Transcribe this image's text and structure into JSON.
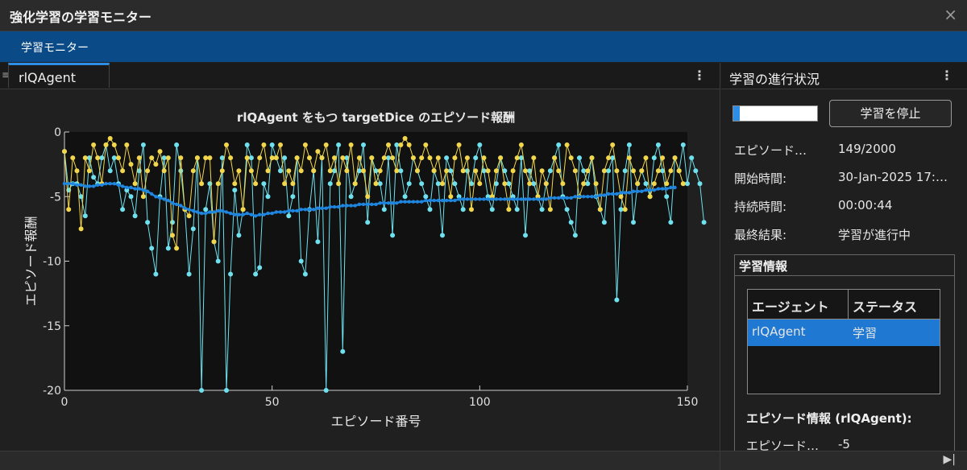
{
  "window": {
    "title": "強化学習の学習モニター",
    "close_icon": "×"
  },
  "ribbon": {
    "tab_label": "学習モニター"
  },
  "doc_tab": {
    "label": "rlQAgent",
    "kebab": "⋮",
    "grip": "≡"
  },
  "chart_data": {
    "type": "line",
    "title": "rlQAgent をもつ targetDice のエピソード報酬",
    "xlabel": "エピソード番号",
    "ylabel": "エピソード報酬",
    "xlim": [
      0,
      150
    ],
    "ylim": [
      -20,
      0
    ],
    "xticks": [
      "0",
      "50",
      "100",
      "150"
    ],
    "yticks": [
      "0",
      "-5",
      "-10",
      "-15",
      "-20"
    ],
    "colors": {
      "episode_reward": "#6fe0ee",
      "episode_q0": "#f2d64b",
      "average_reward": "#1f86e0"
    },
    "series": [
      {
        "key": "episode_reward",
        "values": [
          -1.5,
          -4.5,
          -4,
          -4,
          -5,
          -6.5,
          -2,
          -3.5,
          -4,
          -2,
          -1,
          -3,
          -2,
          -4,
          -6,
          -4.5,
          -5,
          -6.5,
          -3,
          -1,
          -7,
          -9,
          -11,
          -5,
          -2,
          -9,
          -7,
          -1,
          -3,
          -6,
          -11,
          -7.5,
          -2,
          -20,
          -6,
          -4,
          -8.5,
          -10,
          -2,
          -20,
          -11,
          -4.5,
          -8,
          -6,
          -1,
          -2,
          -11,
          -10.5,
          -4,
          -5,
          -1,
          -2,
          -3,
          -2,
          -6.5,
          -5,
          -2,
          -10,
          -11,
          -6,
          -3,
          -8.5,
          -2,
          -20,
          -4,
          -3,
          -1,
          -17,
          -2,
          -5,
          -4,
          -3,
          -1,
          -7,
          -2,
          -3,
          -4,
          -6,
          -2,
          -8,
          -1,
          -3,
          -5,
          -4,
          -2,
          -3,
          -4,
          -5,
          -6,
          -3,
          -4,
          -8,
          -2,
          -3,
          -4,
          -5,
          -6,
          -3,
          -4,
          -2,
          -1,
          -3,
          -5,
          -6,
          -4,
          -2,
          -3,
          -4,
          -5,
          -6,
          -2,
          -8,
          -3,
          -4,
          -5,
          -6,
          -4,
          -3,
          -2,
          -1,
          -5,
          -6,
          -7,
          -8,
          -2,
          -3,
          -4,
          -2,
          -5,
          -6,
          -7,
          -3,
          -2,
          -13,
          -6,
          -3,
          -1,
          -7,
          -4,
          -3,
          -4,
          -5,
          -2,
          -1,
          -3,
          -5,
          -7,
          -2,
          -3,
          -1,
          -4,
          -2,
          -3,
          -4,
          -7
        ],
        "mark_size": 3
      },
      {
        "key": "episode_q0",
        "values": [
          -1.5,
          -6,
          -2,
          -3,
          -7.5,
          -2,
          -3,
          -1,
          -2,
          -4,
          -1,
          -0.5,
          -1,
          -2,
          -3,
          -1,
          -2.5,
          -4,
          -2,
          -5,
          -3,
          -2,
          -2.5,
          -1.5,
          -3,
          -2,
          -8,
          -9,
          -2,
          -6,
          -6.5,
          -3,
          -2,
          -4,
          -2,
          -2,
          -8.5,
          -4,
          -3,
          -1,
          -2,
          -4,
          -3,
          -6,
          -2,
          -3,
          -4,
          -2,
          -1,
          -3,
          -2,
          -2,
          -1,
          -4,
          -3,
          -4,
          -2,
          -3,
          -1,
          -2,
          -3,
          -1.5,
          -2,
          -1,
          -3,
          -2,
          -4,
          -2,
          -3,
          -1,
          -4,
          -2,
          -3,
          -5,
          -2,
          -4,
          -3,
          -2,
          -1,
          -2,
          -3,
          -1,
          -0.5,
          -1,
          -2,
          -3,
          -2,
          -1,
          -2,
          -3,
          -2,
          -4,
          -3,
          -5,
          -2,
          -1,
          -3,
          -2,
          -6,
          -3,
          -4,
          -2,
          -3,
          -5,
          -3,
          -2,
          -4,
          -6,
          -3,
          -2,
          -1,
          -3,
          -4,
          -2,
          -5,
          -3,
          -4,
          -6,
          -2,
          -3,
          -4,
          -1,
          -2,
          -3,
          -5,
          -4,
          -3,
          -2,
          -4,
          -6,
          -3,
          -2,
          -1,
          -3,
          -5,
          -6,
          -2,
          -3,
          -4,
          -3,
          -2,
          -5,
          -4,
          -3,
          -2,
          -4,
          -3,
          -2,
          -3,
          -4
        ],
        "mark_size": 3
      },
      {
        "key": "average_reward",
        "values": [
          -4,
          -4,
          -4,
          -4.1,
          -4.1,
          -4.2,
          -4.2,
          -4.2,
          -4.1,
          -4.1,
          -4,
          -4,
          -4,
          -4.1,
          -4.2,
          -4.3,
          -4.3,
          -4.4,
          -4.4,
          -4.5,
          -4.6,
          -4.8,
          -5,
          -5.1,
          -5.2,
          -5.3,
          -5.5,
          -5.6,
          -5.7,
          -5.9,
          -6,
          -6.1,
          -6.2,
          -6.3,
          -6.3,
          -6.2,
          -6.2,
          -6.1,
          -6.1,
          -6.2,
          -6.3,
          -6.4,
          -6.4,
          -6.4,
          -6.3,
          -6.4,
          -6.5,
          -6.4,
          -6.4,
          -6.3,
          -6.3,
          -6.2,
          -6.2,
          -6.2,
          -6.1,
          -6.1,
          -6.1,
          -6,
          -6,
          -6,
          -6,
          -5.9,
          -5.9,
          -5.9,
          -5.8,
          -5.8,
          -5.8,
          -5.7,
          -5.7,
          -5.7,
          -5.7,
          -5.6,
          -5.6,
          -5.6,
          -5.6,
          -5.6,
          -5.5,
          -5.5,
          -5.5,
          -5.5,
          -5.5,
          -5.4,
          -5.4,
          -5.4,
          -5.4,
          -5.4,
          -5.4,
          -5.3,
          -5.3,
          -5.3,
          -5.3,
          -5.3,
          -5.3,
          -5.3,
          -5.3,
          -5.2,
          -5.2,
          -5.2,
          -5.2,
          -5.2,
          -5.2,
          -5.2,
          -5.2,
          -5.2,
          -5.2,
          -5.2,
          -5.2,
          -5.2,
          -5.2,
          -5.2,
          -5.2,
          -5.2,
          -5.2,
          -5.2,
          -5.2,
          -5.2,
          -5.2,
          -5.1,
          -5.1,
          -5.1,
          -5.1,
          -5.1,
          -5.1,
          -5,
          -5,
          -5,
          -5,
          -5,
          -5,
          -4.9,
          -4.9,
          -4.8,
          -4.8,
          -4.8,
          -4.7,
          -4.7,
          -4.7,
          -4.6,
          -4.6,
          -4.6,
          -4.5,
          -4.5,
          -4.5,
          -4.4,
          -4.4,
          -4.4,
          -4.3,
          -4.3
        ],
        "mark_size": 2.2
      }
    ]
  },
  "progress_panel": {
    "title": "学習の進行状況",
    "kebab": "⋮",
    "progress_fraction": 0.0745,
    "stop_button": "学習を停止",
    "rows": [
      {
        "label": "エピソード…",
        "value": "149/2000"
      },
      {
        "label": "開始時間:",
        "value": "30-Jan-2025 17:…"
      },
      {
        "label": "持続時間:",
        "value": "00:00:44"
      },
      {
        "label": "最終結果:",
        "value": "学習が進行中"
      }
    ],
    "training_info": {
      "title": "学習情報",
      "headers": [
        "エージェント",
        "ステータス"
      ],
      "rows": [
        {
          "agent": "rlQAgent",
          "status": "学習"
        }
      ]
    },
    "episode_info": {
      "title": "エピソード情報 (rlQAgent):",
      "label": "エピソード…",
      "value": "-5"
    }
  },
  "bottom_bar": {
    "expand_icon": "▶|"
  }
}
